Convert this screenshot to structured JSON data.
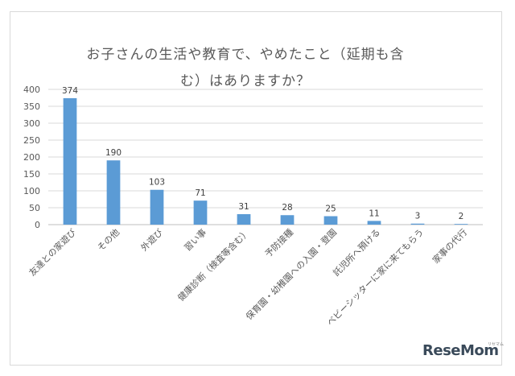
{
  "chart_data": {
    "type": "bar",
    "title": "お子さんの生活や教育で、やめたこと（延期も含む）はありますか？",
    "title_lines": [
      "お子さんの生活や教育で、やめたこと（延期も含",
      "む）はありますか？"
    ],
    "categories": [
      "友達との家遊び",
      "その他",
      "外遊び",
      "習い事",
      "健康診断（検査等含む）",
      "予防接種",
      "保育園・幼稚園への入園・登園",
      "託児所へ預ける",
      "ベビーシッターに家に来てもらう",
      "家事の代行"
    ],
    "values": [
      374,
      190,
      103,
      71,
      31,
      28,
      25,
      11,
      3,
      2
    ],
    "ylim": [
      0,
      400
    ],
    "yticks": [
      0,
      50,
      100,
      150,
      200,
      250,
      300,
      350,
      400
    ],
    "grid": true,
    "legend": "none",
    "bar_color": "#5b9bd5"
  },
  "watermark": {
    "logo_text": "ReseMom",
    "logo_small": "リセマム"
  }
}
